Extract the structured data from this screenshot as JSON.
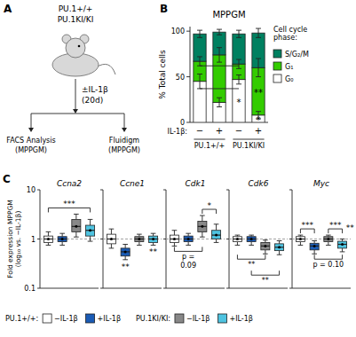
{
  "chart_data": [
    {
      "type": "schematic",
      "annotations": [
        "A",
        "PU.1+/+",
        "PU.1KI/KI",
        "±IL-1β",
        "(20d)",
        "FACS Analysis",
        "(MPPGM)",
        "Fluidigm",
        "(MPPGM)"
      ]
    },
    {
      "type": "bar",
      "stacked": true,
      "title": "MPPGM",
      "y_label": "% Total cells",
      "x_label": "IL-1β:",
      "categories": [
        "−",
        "+",
        "−",
        "+"
      ],
      "group_labels": [
        "PU.1+/+",
        "PU.1KI/KI"
      ],
      "ylim": [
        0,
        105
      ],
      "yticks": [
        0,
        50,
        100
      ],
      "legend": "right",
      "legend_title": "Cell cycle\nphase:",
      "series": [
        {
          "name": "G₀",
          "color": "#ffffff",
          "values": [
            45,
            22,
            47,
            8
          ],
          "errors": [
            8,
            5,
            5,
            4
          ]
        },
        {
          "name": "G₁",
          "color": "#33cc00",
          "values": [
            22,
            52,
            17,
            52
          ],
          "errors": [
            5,
            8,
            5,
            10
          ]
        },
        {
          "name": "S/G₂/M",
          "color": "#008060",
          "values": [
            30,
            25,
            33,
            38
          ],
          "errors": [
            4,
            3,
            4,
            5
          ]
        }
      ],
      "annotations": [
        {
          "text": "B",
          "side": "corner"
        },
        {
          "text": "*",
          "at": 2,
          "series": 0
        },
        {
          "text": "*",
          "at": 3,
          "series": 0
        },
        {
          "text": "**",
          "at": 3,
          "series": 1
        }
      ],
      "comparison_lines": [
        {
          "from": 0,
          "to": 2,
          "value": 37
        },
        {
          "from": 0,
          "to": 2,
          "value": 62
        }
      ]
    },
    {
      "type": "box",
      "title": "Ccna2",
      "log": "y",
      "ylim": [
        0.1,
        10
      ],
      "yticks": [
        0.1,
        1,
        10
      ],
      "tick_labels": "y",
      "hline": 1,
      "y_label": "Fold expression MPPGM\n(log₁₀ vs. −IL-1β)",
      "categories": [
        null,
        null,
        null,
        null
      ],
      "colors": [
        "#ffffff",
        "#1a5bb5",
        "#888888",
        "#4ec3e0"
      ],
      "boxes": [
        {
          "median": 1.0,
          "q1": 0.85,
          "q3": 1.15,
          "whislo": 0.75,
          "whishi": 1.4
        },
        {
          "median": 1.0,
          "q1": 0.88,
          "q3": 1.12,
          "whislo": 0.75,
          "whishi": 1.3
        },
        {
          "median": 1.8,
          "q1": 1.4,
          "q3": 2.5,
          "whislo": 1.1,
          "whishi": 3.2
        },
        {
          "median": 1.5,
          "q1": 1.15,
          "q3": 1.9,
          "whislo": 0.9,
          "whishi": 2.5
        }
      ],
      "annotations": [
        {
          "text": "C",
          "side": "corner"
        },
        {
          "text": "***",
          "from": 0,
          "to": 3,
          "side": "above"
        }
      ]
    },
    {
      "type": "box",
      "title": "Ccne1",
      "log": "y",
      "ylim": [
        0.1,
        10
      ],
      "yticks": [
        0.1,
        1,
        10
      ],
      "tick_labels": false,
      "hline": 1,
      "categories": [
        null,
        null,
        null,
        null
      ],
      "colors": [
        "#ffffff",
        "#1a5bb5",
        "#888888",
        "#4ec3e0"
      ],
      "boxes": [
        {
          "median": 1.0,
          "q1": 0.8,
          "q3": 1.25,
          "whislo": 0.65,
          "whishi": 1.6
        },
        {
          "median": 0.55,
          "q1": 0.45,
          "q3": 0.65,
          "whislo": 0.38,
          "whishi": 0.78
        },
        {
          "median": 1.0,
          "q1": 0.88,
          "q3": 1.12,
          "whislo": 0.75,
          "whishi": 1.25
        },
        {
          "median": 1.0,
          "q1": 0.85,
          "q3": 1.15,
          "whislo": 0.75,
          "whishi": 1.3
        }
      ],
      "annotations": [
        {
          "text": "**",
          "at": 1,
          "side": "below"
        },
        {
          "text": "**",
          "at": 3,
          "side": "below"
        }
      ]
    },
    {
      "type": "box",
      "title": "Cdk1",
      "log": "y",
      "ylim": [
        0.1,
        10
      ],
      "yticks": [
        0.1,
        1,
        10
      ],
      "tick_labels": false,
      "hline": 1,
      "categories": [
        null,
        null,
        null,
        null
      ],
      "colors": [
        "#ffffff",
        "#1a5bb5",
        "#888888",
        "#4ec3e0"
      ],
      "boxes": [
        {
          "median": 1.0,
          "q1": 0.85,
          "q3": 1.2,
          "whislo": 0.72,
          "whishi": 1.5
        },
        {
          "median": 1.0,
          "q1": 0.88,
          "q3": 1.15,
          "whislo": 0.75,
          "whishi": 1.3
        },
        {
          "median": 1.8,
          "q1": 1.4,
          "q3": 2.3,
          "whislo": 1.1,
          "whishi": 3.0
        },
        {
          "median": 1.2,
          "q1": 1.0,
          "q3": 1.5,
          "whislo": 0.85,
          "whishi": 2.0
        }
      ],
      "annotations": [
        {
          "text": "*",
          "from": 2,
          "to": 3,
          "side": "above"
        },
        {
          "text": "p =\n0.09",
          "from": 0,
          "to": 2,
          "side": "below"
        }
      ]
    },
    {
      "type": "box",
      "title": "Cdk6",
      "log": "y",
      "ylim": [
        0.1,
        10
      ],
      "yticks": [
        0.1,
        1,
        10
      ],
      "tick_labels": false,
      "hline": 1,
      "categories": [
        null,
        null,
        null,
        null
      ],
      "colors": [
        "#ffffff",
        "#1a5bb5",
        "#888888",
        "#4ec3e0"
      ],
      "boxes": [
        {
          "median": 1.0,
          "q1": 0.88,
          "q3": 1.12,
          "whislo": 0.75,
          "whishi": 1.2
        },
        {
          "median": 1.0,
          "q1": 0.88,
          "q3": 1.12,
          "whislo": 0.75,
          "whishi": 1.2
        },
        {
          "median": 0.72,
          "q1": 0.6,
          "q3": 0.85,
          "whislo": 0.5,
          "whishi": 0.95
        },
        {
          "median": 0.68,
          "q1": 0.58,
          "q3": 0.8,
          "whislo": 0.48,
          "whishi": 0.92
        }
      ],
      "annotations": [
        {
          "text": "**",
          "from": 0,
          "to": 2,
          "side": "below"
        },
        {
          "text": "**",
          "from": 1,
          "to": 3,
          "side": "below"
        }
      ]
    },
    {
      "type": "box",
      "title": "Myc",
      "log": "y",
      "ylim": [
        0.1,
        10
      ],
      "yticks": [
        0.1,
        1,
        10
      ],
      "tick_labels": false,
      "hline": 1,
      "categories": [
        null,
        null,
        null,
        null
      ],
      "colors": [
        "#ffffff",
        "#1a5bb5",
        "#888888",
        "#4ec3e0"
      ],
      "boxes": [
        {
          "median": 1.0,
          "q1": 0.88,
          "q3": 1.12,
          "whislo": 0.75,
          "whishi": 1.2
        },
        {
          "median": 0.72,
          "q1": 0.6,
          "q3": 0.82,
          "whislo": 0.5,
          "whishi": 0.92
        },
        {
          "median": 1.0,
          "q1": 0.88,
          "q3": 1.12,
          "whislo": 0.75,
          "whishi": 1.2
        },
        {
          "median": 0.78,
          "q1": 0.65,
          "q3": 0.9,
          "whislo": 0.55,
          "whishi": 1.0
        }
      ],
      "annotations": [
        {
          "text": "***",
          "from": 0,
          "to": 1,
          "side": "above"
        },
        {
          "text": "***",
          "from": 2,
          "to": 3,
          "side": "above"
        },
        {
          "text": "**",
          "at": 3,
          "side": "right"
        },
        {
          "text": "p = 0.10",
          "from": 1,
          "to": 3,
          "side": "below"
        }
      ]
    },
    {
      "type": "legend",
      "groups": [
        {
          "label": "PU.1+/+:",
          "entries": [
            {
              "name": "−IL-1β",
              "color": "#ffffff"
            },
            {
              "name": "+IL-1β",
              "color": "#1a5bb5"
            }
          ]
        },
        {
          "label": "PU.1KI/KI:",
          "entries": [
            {
              "name": "−IL-1β",
              "color": "#888888"
            },
            {
              "name": "+IL-1β",
              "color": "#4ec3e0"
            }
          ]
        }
      ]
    }
  ]
}
